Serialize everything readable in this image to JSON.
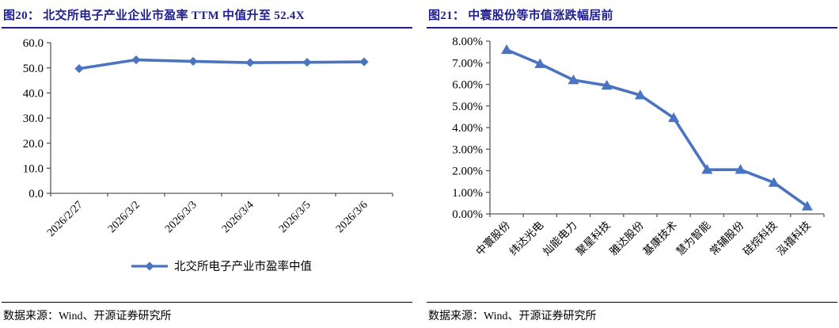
{
  "colors": {
    "accent_line": "#4a73c0",
    "title_navy": "#1e1e8f",
    "axis_gray": "#595959"
  },
  "figures": [
    {
      "title": "图20： 北交所电子产业企业市盈率 TTM 中值升至 52.4X",
      "source": "数据来源：Wind、开源证券研究所"
    },
    {
      "title": "图21： 中寰股份等市值涨跌幅居前",
      "source": "数据来源：Wind、开源证券研究所"
    }
  ],
  "chart_data": [
    {
      "type": "line",
      "title": "北交所电子产业企业市盈率TTM中值升至52.4X",
      "categories": [
        "2026/2/27",
        "2026/3/2",
        "2026/3/3",
        "2026/3/4",
        "2026/3/5",
        "2026/3/6"
      ],
      "series": [
        {
          "name": "北交所电子产业市盈率中值",
          "values": [
            49.7,
            53.2,
            52.6,
            52.1,
            52.2,
            52.4
          ]
        }
      ],
      "ylim": [
        0,
        60
      ],
      "ytick_step": 10,
      "ytick_format": "fixed1",
      "marker": "diamond",
      "line_color": "#4a73c0",
      "grid": false,
      "legend": {
        "position": "bottom",
        "entries": [
          "北交所电子产业市盈率中值"
        ]
      },
      "xlabel": "",
      "ylabel": ""
    },
    {
      "type": "line",
      "title": "中寰股份等市值涨跌幅居前",
      "categories": [
        "中寰股份",
        "纬达光电",
        "灿能电力",
        "聚星科技",
        "雅达股份",
        "基康技术",
        "慧为智能",
        "常辅股份",
        "硅烷科技",
        "泓禧科技"
      ],
      "values": [
        7.6,
        6.95,
        6.2,
        5.95,
        5.5,
        4.45,
        2.05,
        2.05,
        1.45,
        0.35
      ],
      "ylim": [
        0,
        8
      ],
      "ytick_step": 1,
      "ytick_format": "percent2",
      "marker": "triangle",
      "line_color": "#4a73c0",
      "grid": false,
      "legend": null,
      "xlabel": "",
      "ylabel": ""
    }
  ]
}
